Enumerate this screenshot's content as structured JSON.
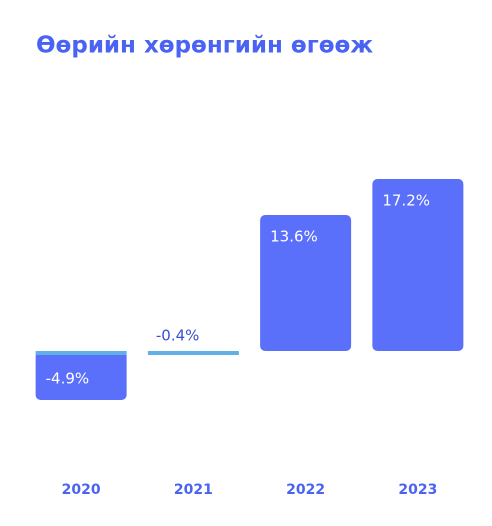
{
  "chart_data": {
    "type": "bar",
    "title": "Өөрийн хөрөнгийн өгөөж",
    "categories": [
      "2020",
      "2021",
      "2022",
      "2023"
    ],
    "values": [
      -4.9,
      -0.4,
      13.6,
      17.2
    ],
    "value_labels": [
      "-4.9%",
      "-0.4%",
      "13.6%",
      "17.2%"
    ],
    "color": "#5a6ffa",
    "ylim": [
      -6,
      18
    ]
  }
}
